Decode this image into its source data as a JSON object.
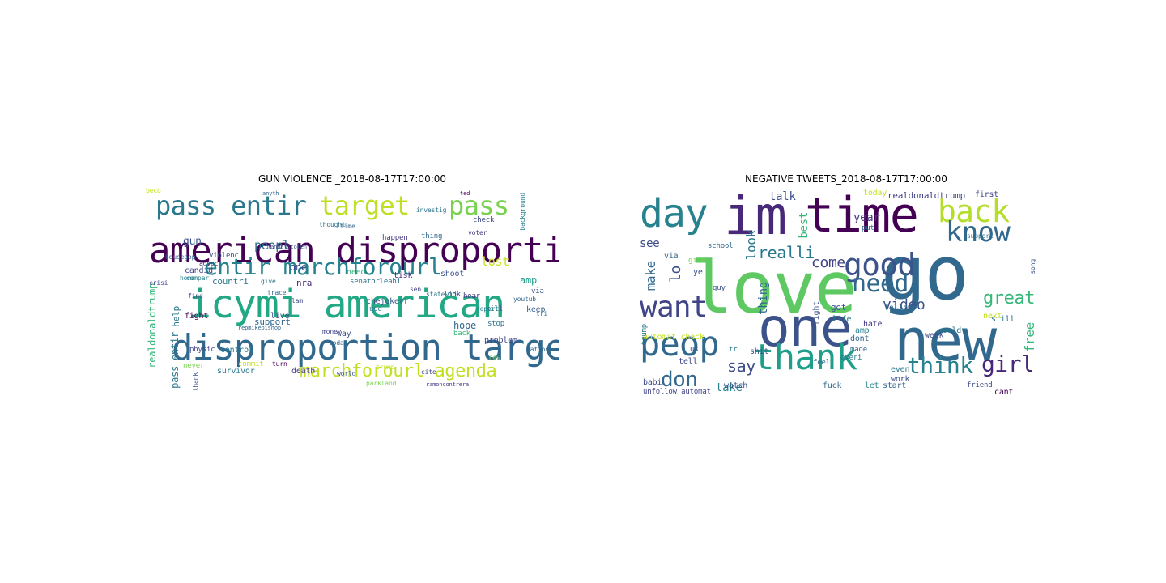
{
  "clouds": [
    {
      "title": "GUN VIOLENCE _2018-08-17T17:00:00",
      "words": [
        {
          "text": "american disproportion",
          "color": "#440154",
          "size": 44
        },
        {
          "text": "icymi american",
          "color": "#22a884",
          "size": 48
        },
        {
          "text": "disproportion target",
          "color": "#31688e",
          "size": 44
        },
        {
          "text": "pass entir",
          "color": "#2a788e",
          "size": 32
        },
        {
          "text": "target",
          "color": "#bddf26",
          "size": 32
        },
        {
          "text": "pass",
          "color": "#7ad151",
          "size": 32
        },
        {
          "text": "entir marchforourl",
          "color": "#26828e",
          "size": 28
        },
        {
          "text": "marchforourl agenda",
          "color": "#c2df23",
          "size": 22
        },
        {
          "text": "realdonaldtrump",
          "color": "#35b779",
          "size": 12,
          "vertical": true
        },
        {
          "text": "peopl",
          "color": "#31688e",
          "size": 15
        },
        {
          "text": "gun",
          "color": "#3b528b",
          "size": 13
        },
        {
          "text": "lost",
          "color": "#c8e020",
          "size": 15
        },
        {
          "text": "amp",
          "color": "#1f9e89",
          "size": 12
        },
        {
          "text": "pass entir",
          "color": "#2a788e",
          "size": 12,
          "vertical": true
        },
        {
          "text": "help",
          "color": "#2a788e",
          "size": 11,
          "vertical": true
        },
        {
          "text": "hope",
          "color": "#31688e",
          "size": 12
        },
        {
          "text": "candid",
          "color": "#414487",
          "size": 10
        },
        {
          "text": "countri",
          "color": "#2a788e",
          "size": 11
        },
        {
          "text": "nra",
          "color": "#482878",
          "size": 11
        },
        {
          "text": "support",
          "color": "#31688e",
          "size": 11
        },
        {
          "text": "fight",
          "color": "#440154",
          "size": 10
        },
        {
          "text": "live",
          "color": "#414487",
          "size": 10
        },
        {
          "text": "one",
          "color": "#3e4a89",
          "size": 12
        },
        {
          "text": "control",
          "color": "#2a788e",
          "size": 10
        },
        {
          "text": "need",
          "color": "#35b779",
          "size": 10
        },
        {
          "text": "tisk",
          "color": "#482878",
          "size": 10
        },
        {
          "text": "shoot",
          "color": "#3b528b",
          "size": 10
        },
        {
          "text": "happen",
          "color": "#443a83",
          "size": 9
        },
        {
          "text": "thing",
          "color": "#31688e",
          "size": 9
        },
        {
          "text": "background",
          "color": "#26828e",
          "size": 8,
          "vertical": true
        },
        {
          "text": "problem",
          "color": "#414487",
          "size": 10
        },
        {
          "text": "keep",
          "color": "#355f8d",
          "size": 10
        },
        {
          "text": "senatorleahi",
          "color": "#2c728e",
          "size": 9
        },
        {
          "text": "thejokerr",
          "color": "#3b528b",
          "size": 10
        },
        {
          "text": "commit",
          "color": "#c2df23",
          "size": 9
        },
        {
          "text": "survivor",
          "color": "#2a788e",
          "size": 10
        },
        {
          "text": "death",
          "color": "#453781",
          "size": 10
        },
        {
          "text": "physic",
          "color": "#414487",
          "size": 9
        },
        {
          "text": "never",
          "color": "#7ad151",
          "size": 9
        },
        {
          "text": "way",
          "color": "#3b528b",
          "size": 10
        },
        {
          "text": "today",
          "color": "#31688e",
          "size": 8
        },
        {
          "text": "stop",
          "color": "#2c728e",
          "size": 9
        },
        {
          "text": "kill",
          "color": "#3e4a89",
          "size": 9
        },
        {
          "text": "hear",
          "color": "#443a83",
          "size": 9
        },
        {
          "text": "back",
          "color": "#35b779",
          "size": 9
        },
        {
          "text": "violenc",
          "color": "#3b528b",
          "size": 9
        },
        {
          "text": "housegop",
          "color": "#31688e",
          "size": 8
        },
        {
          "text": "advoc",
          "color": "#482878",
          "size": 8
        },
        {
          "text": "home",
          "color": "#26828e",
          "size": 8
        },
        {
          "text": "give",
          "color": "#2a788e",
          "size": 8
        },
        {
          "text": "investig",
          "color": "#2c728e",
          "size": 8
        },
        {
          "text": "check",
          "color": "#3e4a89",
          "size": 9
        },
        {
          "text": "voter",
          "color": "#453781",
          "size": 8
        },
        {
          "text": "report",
          "color": "#26828e",
          "size": 8
        },
        {
          "text": "nation",
          "color": "#31688e",
          "size": 8
        },
        {
          "text": "turn",
          "color": "#440154",
          "size": 8
        },
        {
          "text": "world",
          "color": "#3b528b",
          "size": 8
        },
        {
          "text": "money",
          "color": "#414487",
          "size": 8
        },
        {
          "text": "thought",
          "color": "#2c728e",
          "size": 8
        },
        {
          "text": "time",
          "color": "#31688e",
          "size": 8
        },
        {
          "text": "look",
          "color": "#3e4a89",
          "size": 9
        },
        {
          "text": "youtub",
          "color": "#31688e",
          "size": 8
        },
        {
          "text": "statewid",
          "color": "#2a788e",
          "size": 8
        },
        {
          "text": "parkland",
          "color": "#7ad151",
          "size": 8
        },
        {
          "text": "ramoncontrera",
          "color": "#443a83",
          "size": 7
        },
        {
          "text": "find",
          "color": "#3b528b",
          "size": 8
        },
        {
          "text": "crisi",
          "color": "#414487",
          "size": 8
        },
        {
          "text": "anyth",
          "color": "#31688e",
          "size": 7
        },
        {
          "text": "ted",
          "color": "#440154",
          "size": 7
        },
        {
          "text": "mandatstolen",
          "color": "#3b528b",
          "size": 7
        },
        {
          "text": "repmikebishop",
          "color": "#31688e",
          "size": 7
        },
        {
          "text": "use",
          "color": "#2a788e",
          "size": 9
        },
        {
          "text": "via",
          "color": "#3b528b",
          "size": 9
        },
        {
          "text": "sen",
          "color": "#414487",
          "size": 8
        },
        {
          "text": "compar",
          "color": "#26828e",
          "size": 8
        },
        {
          "text": "trace",
          "color": "#31688e",
          "size": 8
        },
        {
          "text": "lam",
          "color": "#3e4a89",
          "size": 8
        },
        {
          "text": "cite",
          "color": "#414487",
          "size": 8
        },
        {
          "text": "new",
          "color": "#7ad151",
          "size": 8
        },
        {
          "text": "tri",
          "color": "#2c728e",
          "size": 8
        },
        {
          "text": "thank",
          "color": "#3b528b",
          "size": 8,
          "vertical": true
        },
        {
          "text": "trump",
          "color": "#c8e020",
          "size": 8
        },
        {
          "text": "beco",
          "color": "#c2df23",
          "size": 8
        }
      ]
    },
    {
      "title": "NEGATIVE TWEETS_2018-08-17T17:00:00",
      "words": [
        {
          "text": "love",
          "color": "#5ec962",
          "size": 88
        },
        {
          "text": "go",
          "color": "#31688e",
          "size": 92
        },
        {
          "text": "im",
          "color": "#482878",
          "size": 66
        },
        {
          "text": "time",
          "color": "#440154",
          "size": 60
        },
        {
          "text": "one",
          "color": "#3b528b",
          "size": 66
        },
        {
          "text": "new",
          "color": "#31688e",
          "size": 72
        },
        {
          "text": "day",
          "color": "#26828e",
          "size": 48
        },
        {
          "text": "back",
          "color": "#b5de2b",
          "size": 38
        },
        {
          "text": "know",
          "color": "#31688e",
          "size": 34
        },
        {
          "text": "good",
          "color": "#3b528b",
          "size": 38
        },
        {
          "text": "want",
          "color": "#414487",
          "size": 36
        },
        {
          "text": "peop",
          "color": "#31688e",
          "size": 42
        },
        {
          "text": "thank",
          "color": "#1f9e89",
          "size": 44
        },
        {
          "text": "need",
          "color": "#31688e",
          "size": 30
        },
        {
          "text": "think",
          "color": "#26828e",
          "size": 28
        },
        {
          "text": "girl",
          "color": "#482878",
          "size": 28
        },
        {
          "text": "great",
          "color": "#35b779",
          "size": 22
        },
        {
          "text": "don",
          "color": "#31688e",
          "size": 26
        },
        {
          "text": "say",
          "color": "#3e4a89",
          "size": 20
        },
        {
          "text": "video",
          "color": "#3b528b",
          "size": 18
        },
        {
          "text": "come",
          "color": "#414487",
          "size": 18
        },
        {
          "text": "realli",
          "color": "#2a788e",
          "size": 20
        },
        {
          "text": "best",
          "color": "#35b779",
          "size": 14,
          "vertical": true
        },
        {
          "text": "look",
          "color": "#2a788e",
          "size": 16,
          "vertical": true
        },
        {
          "text": "make",
          "color": "#31688e",
          "size": 16,
          "vertical": true
        },
        {
          "text": "lo",
          "color": "#3b528b",
          "size": 18,
          "vertical": true
        },
        {
          "text": "free",
          "color": "#35b779",
          "size": 16,
          "vertical": true
        },
        {
          "text": "thing",
          "color": "#31688e",
          "size": 14,
          "vertical": true
        },
        {
          "text": "talk",
          "color": "#3b528b",
          "size": 14
        },
        {
          "text": "see",
          "color": "#3e4a89",
          "size": 14
        },
        {
          "text": "year",
          "color": "#443a83",
          "size": 14
        },
        {
          "text": "take",
          "color": "#26828e",
          "size": 14
        },
        {
          "text": "realdonaldtrump",
          "color": "#414487",
          "size": 11
        },
        {
          "text": "today",
          "color": "#c8e020",
          "size": 10
        },
        {
          "text": "first",
          "color": "#414487",
          "size": 10
        },
        {
          "text": "got",
          "color": "#3b528b",
          "size": 11
        },
        {
          "text": "work",
          "color": "#3b528b",
          "size": 10
        },
        {
          "text": "dont",
          "color": "#31688e",
          "size": 10
        },
        {
          "text": "follow",
          "color": "#31688e",
          "size": 10
        },
        {
          "text": "world",
          "color": "#2a788e",
          "size": 10
        },
        {
          "text": "still",
          "color": "#2c728e",
          "size": 10
        },
        {
          "text": "week",
          "color": "#3e4a89",
          "size": 10
        },
        {
          "text": "life",
          "color": "#2a788e",
          "size": 10
        },
        {
          "text": "hate",
          "color": "#453781",
          "size": 10
        },
        {
          "text": "amp",
          "color": "#26828e",
          "size": 10
        },
        {
          "text": "right",
          "color": "#3b528b",
          "size": 10,
          "vertical": true
        },
        {
          "text": "automat check",
          "color": "#c8e020",
          "size": 10
        },
        {
          "text": "babi",
          "color": "#3e4a89",
          "size": 10
        },
        {
          "text": "unfollow automat",
          "color": "#414487",
          "size": 9
        },
        {
          "text": "watch",
          "color": "#3b528b",
          "size": 10
        },
        {
          "text": "fuck",
          "color": "#31688e",
          "size": 10
        },
        {
          "text": "let",
          "color": "#26828e",
          "size": 10
        },
        {
          "text": "start",
          "color": "#31688e",
          "size": 10
        },
        {
          "text": "even",
          "color": "#2a788e",
          "size": 10
        },
        {
          "text": "friend",
          "color": "#3e4a89",
          "size": 9
        },
        {
          "text": "cant",
          "color": "#440154",
          "size": 10
        },
        {
          "text": "next",
          "color": "#c2df23",
          "size": 10
        },
        {
          "text": "shit",
          "color": "#3b528b",
          "size": 10
        },
        {
          "text": "tell",
          "color": "#414487",
          "size": 10
        },
        {
          "text": "via",
          "color": "#31688e",
          "size": 10
        },
        {
          "text": "school",
          "color": "#31688e",
          "size": 9
        },
        {
          "text": "trump",
          "color": "#2a788e",
          "size": 9,
          "vertical": true
        },
        {
          "text": "give",
          "color": "#7ad151",
          "size": 9
        },
        {
          "text": "ye",
          "color": "#3b528b",
          "size": 10
        },
        {
          "text": "feel",
          "color": "#2c728e",
          "size": 9
        },
        {
          "text": "made",
          "color": "#31688e",
          "size": 9
        },
        {
          "text": "everi",
          "color": "#2a788e",
          "size": 9
        },
        {
          "text": "guy",
          "color": "#3b528b",
          "size": 9
        },
        {
          "text": "put",
          "color": "#31688e",
          "size": 9
        },
        {
          "text": "support",
          "color": "#2c728e",
          "size": 8
        },
        {
          "text": "song",
          "color": "#3b528b",
          "size": 8,
          "vertical": true
        },
        {
          "text": "us",
          "color": "#3e4a89",
          "size": 9
        },
        {
          "text": "tr",
          "color": "#2a788e",
          "size": 9
        }
      ]
    }
  ]
}
